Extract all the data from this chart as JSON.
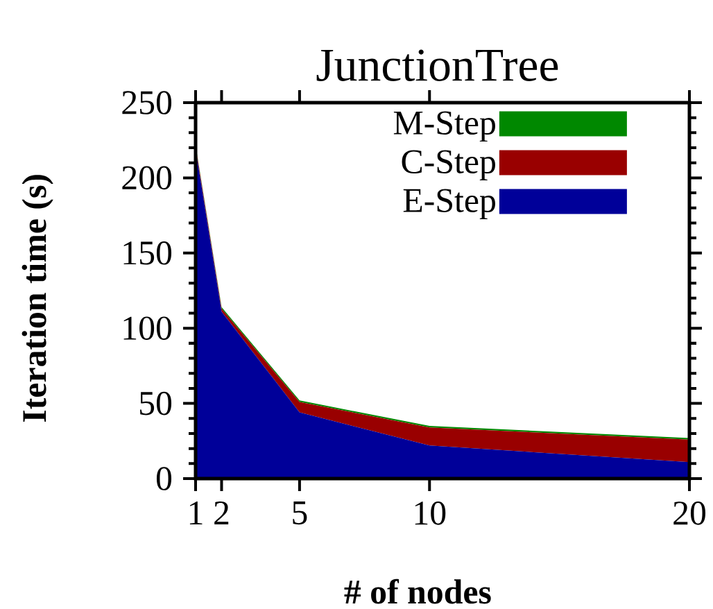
{
  "chart_data": {
    "type": "area",
    "title": "JunctionTree",
    "xlabel": "# of nodes",
    "ylabel": "Iteration time (s)",
    "x": [
      1,
      2,
      5,
      10,
      20
    ],
    "stacked": true,
    "series": [
      {
        "name": "E-Step",
        "color": "#000099",
        "values": [
          219,
          111,
          44,
          22,
          11
        ]
      },
      {
        "name": "C-Step",
        "color": "#990000",
        "values": [
          2,
          2,
          7,
          12,
          15
        ]
      },
      {
        "name": "M-Step",
        "color": "#008800",
        "values": [
          1,
          1,
          1,
          1,
          1
        ]
      }
    ],
    "xlim": [
      1,
      20
    ],
    "ylim": [
      0,
      250
    ],
    "xticks": [
      1,
      2,
      5,
      10,
      20
    ],
    "yticks": [
      0,
      50,
      100,
      150,
      200,
      250
    ],
    "legend": "top right"
  }
}
